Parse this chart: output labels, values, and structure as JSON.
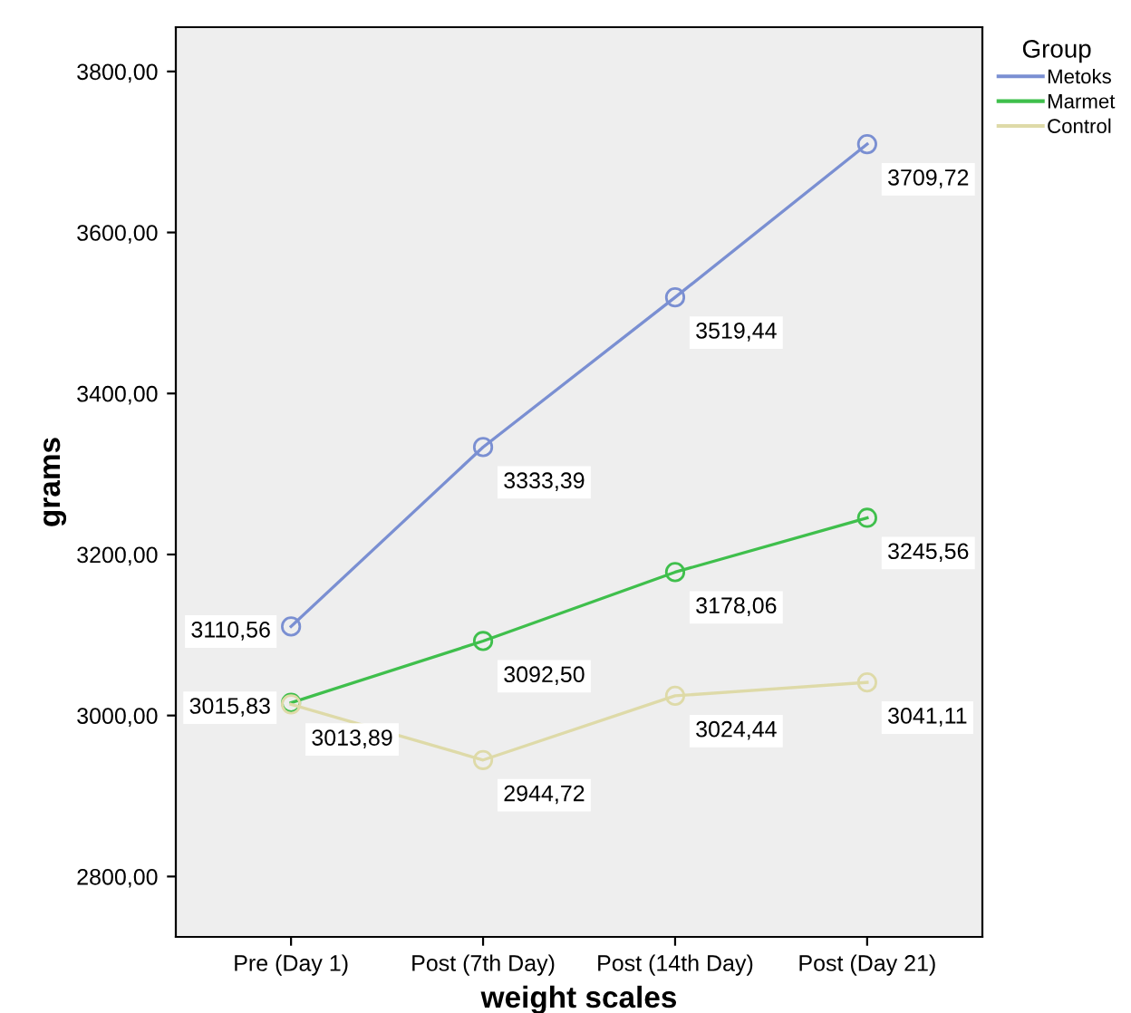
{
  "chart_data": {
    "type": "line",
    "xlabel": "weight scales",
    "ylabel": "grams",
    "legend_title": "Group",
    "legend": "right",
    "marker": "circle",
    "line_style": "solid",
    "grid": false,
    "categories": [
      "Pre (Day 1)",
      "Post (7th Day)",
      "Post (14th Day)",
      "Post (Day 21)"
    ],
    "ylim": [
      2725,
      3855
    ],
    "yticks": [
      {
        "value": 2800,
        "label": "2800,00"
      },
      {
        "value": 3000,
        "label": "3000,00"
      },
      {
        "value": 3200,
        "label": "3200,00"
      },
      {
        "value": 3400,
        "label": "3400,00"
      },
      {
        "value": 3600,
        "label": "3600,00"
      },
      {
        "value": 3800,
        "label": "3800,00"
      }
    ],
    "series": [
      {
        "name": "Metoks",
        "color": "#7a8fd2",
        "values": [
          3110.56,
          3333.39,
          3519.44,
          3709.72
        ],
        "value_labels": [
          "3110,56",
          "3333,39",
          "3519,44",
          "3709,72"
        ]
      },
      {
        "name": "Marmet",
        "color": "#3fbf4c",
        "values": [
          3015.83,
          3092.5,
          3178.06,
          3245.56
        ],
        "value_labels": [
          "3015,83",
          "3092,50",
          "3178,06",
          "3245,56"
        ]
      },
      {
        "name": "Control",
        "color": "#dedaa8",
        "values": [
          3013.89,
          2944.72,
          3024.44,
          3041.11
        ],
        "value_labels": [
          "3013,89",
          "2944,72",
          "3024,44",
          "3041,11"
        ]
      }
    ]
  }
}
